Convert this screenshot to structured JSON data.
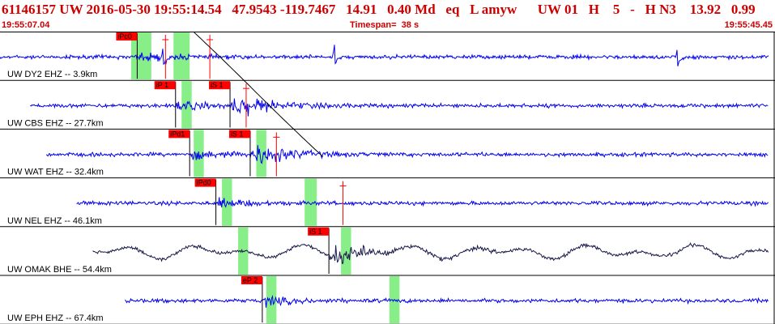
{
  "header": {
    "event_line": "61146157 UW 2016-05-30 19:55:14.54   47.9543 -119.7467   14.91   0.40 Md   eq   L amyw      UW 01   H    5   -   H N3    13.92   0.99",
    "start_time": "19:55:07.04",
    "timespan": "Timespan=  38 s",
    "end_time": "19:55:45.45"
  },
  "colors": {
    "header_text": "#cc0000",
    "trace_blue": "#0000ee",
    "trace_dark": "#1a1a4a",
    "pick_red": "#ff0000",
    "window_green": "#88ee88",
    "separator": "#000000"
  },
  "panels": [
    {
      "label": "UW DY2 EHZ -- 3.9km",
      "color": "blue",
      "trace_range": [
        0,
        41
      ],
      "events": [
        8,
        16.5,
        33.5
      ],
      "p_pick": {
        "label": "iPc0",
        "t": 6.8
      },
      "s_pick": null,
      "green_windows": [
        [
          6.5,
          7.5
        ],
        [
          8.6,
          9.4
        ]
      ],
      "red_lines": [
        8.2,
        10.4
      ]
    },
    {
      "label": "UW CBS EHZ -- 27.7km",
      "color": "blue",
      "trace_range": [
        1.5,
        46
      ],
      "events": [],
      "p_pick": {
        "label": "iP 1",
        "t": 8.7
      },
      "s_pick": {
        "label": "iS 1",
        "t": 11.4
      },
      "green_windows": [
        [
          9.0,
          9.5
        ]
      ],
      "red_lines": [
        12.2
      ]
    },
    {
      "label": "UW WAT EHZ -- 32.4km",
      "color": "blue",
      "trace_range": [
        2.3,
        47
      ],
      "events": [],
      "p_pick": {
        "label": "iPd1",
        "t": 9.4
      },
      "s_pick": {
        "label": "iS 1",
        "t": 12.4
      },
      "green_windows": [
        [
          9.6,
          10.1
        ],
        [
          12.7,
          13.2
        ]
      ],
      "red_lines": [
        13.7
      ]
    },
    {
      "label": "UW NEL EHZ -- 46.1km",
      "color": "blue",
      "trace_range": [
        3.8,
        49
      ],
      "events": [],
      "p_pick": {
        "label": "iPd0",
        "t": 10.7
      },
      "s_pick": null,
      "green_windows": [
        [
          11.0,
          11.5
        ],
        [
          15.1,
          15.7
        ]
      ],
      "red_lines": [
        17.0
      ]
    },
    {
      "label": "UW OMAK BHE -- 54.4km",
      "color": "dark",
      "trace_range": [
        4.6,
        52
      ],
      "events": [],
      "p_pick": null,
      "s_pick": {
        "label": "iS 1",
        "t": 16.3
      },
      "green_windows": [
        [
          11.8,
          12.3
        ],
        [
          16.9,
          17.4
        ]
      ],
      "red_lines": []
    },
    {
      "label": "UW EPH EHZ -- 67.4km",
      "color": "blue",
      "trace_range": [
        6.2,
        55
      ],
      "events": [],
      "p_pick": {
        "label": "eP 2",
        "t": 13.0
      },
      "s_pick": null,
      "green_windows": [
        [
          13.2,
          13.7
        ],
        [
          19.3,
          19.8
        ]
      ],
      "red_lines": []
    }
  ]
}
